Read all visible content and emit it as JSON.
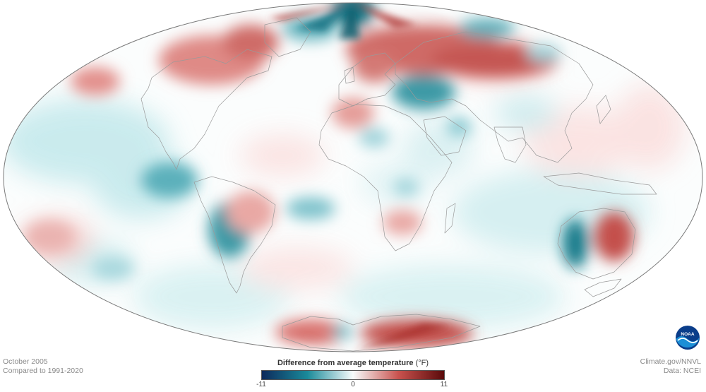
{
  "map": {
    "projection": "Hammer (world equal-area)",
    "variable": "temperature anomaly",
    "color_scale": [
      "#0d2a5c",
      "#1a8a9a",
      "#f7fbfb",
      "#c9524e",
      "#5a0a0a"
    ],
    "regions_warm": [
      "Greenland west",
      "Northern Europe",
      "Siberia",
      "Eastern Australia",
      "West Antarctica",
      "Sahara",
      "North Pacific"
    ],
    "regions_cool": [
      "Svalbard",
      "Caspian region",
      "Peru coast",
      "Central Australia",
      "South Atlantic"
    ]
  },
  "footer": {
    "date_line": "October 2005",
    "baseline_line": "Compared to 1991-2020",
    "credit_line": "Climate.gov/NNVL",
    "data_line": "Data: NCEI"
  },
  "legend": {
    "title": "Difference from average temperature",
    "unit": "(°F)",
    "min_label": "-11",
    "mid_label": "0",
    "max_label": "11",
    "min": -11,
    "max": 11
  },
  "logo": {
    "text": "NOAA",
    "icon": "noaa-logo-icon",
    "colors": [
      "#0a3d8a",
      "#1b8fd6",
      "#ffffff"
    ]
  }
}
